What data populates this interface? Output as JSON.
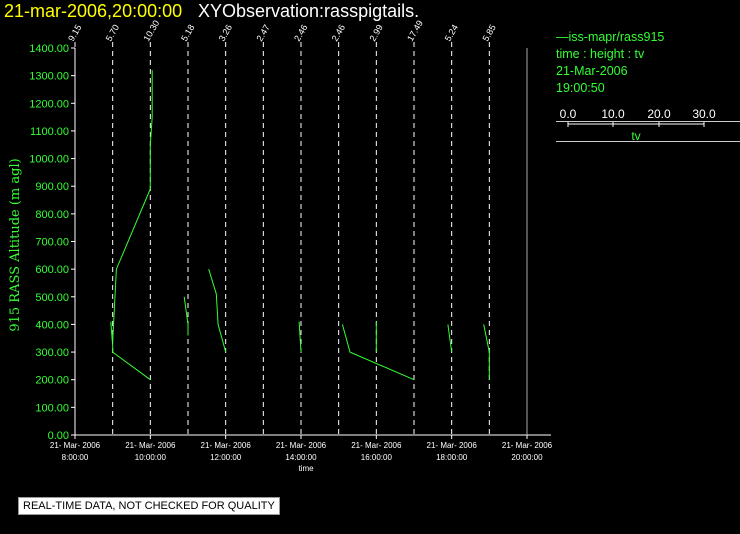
{
  "header": {
    "date_time": "21-mar-2006,20:00:00",
    "observation": "XYObservation:rasspigtails."
  },
  "legend": {
    "series_label": "iss-mapr/rass915",
    "axes_desc": "time : height : tv",
    "date": "21-Mar-2006",
    "time": "19:00:50",
    "scale_ticks": [
      "0.0",
      "10.0",
      "20.0",
      "30.0"
    ],
    "scale_label": "tv"
  },
  "footer": {
    "quality_note": "REAL-TIME DATA, NOT CHECKED FOR QUALITY"
  },
  "colors": {
    "trace": "#33ff33",
    "axis": "#ffffff",
    "title_date": "#ffff00"
  },
  "chart_data": {
    "type": "line",
    "ylabel": "915 RASS Altitude (m agl)",
    "xlabel": "time",
    "ylim": [
      0,
      1400
    ],
    "xlim": [
      8,
      21
    ],
    "y_ticks": [
      "0.00",
      "100.00",
      "200.00",
      "300.00",
      "400.00",
      "500.00",
      "600.00",
      "700.00",
      "800.00",
      "900.00",
      "1000.00",
      "1100.00",
      "1200.00",
      "1300.00",
      "1400.00"
    ],
    "x_ticks": [
      {
        "x": 8,
        "date": "21- Mar- 2006",
        "time": "8:00:00"
      },
      {
        "x": 10,
        "date": "21- Mar- 2006",
        "time": "10:00:00"
      },
      {
        "x": 12,
        "date": "21- Mar- 2006",
        "time": "12:00:00"
      },
      {
        "x": 14,
        "date": "21- Mar- 2006",
        "time": "14:00:00"
      },
      {
        "x": 16,
        "date": "21- Mar- 2006",
        "time": "16:00:00"
      },
      {
        "x": 18,
        "date": "21- Mar- 2006",
        "time": "18:00:00"
      },
      {
        "x": 20,
        "date": "21- Mar- 2006",
        "time": "20:00:00"
      }
    ],
    "grid": false,
    "profiles": [
      {
        "time": 8.0,
        "scale": "9.15",
        "points": []
      },
      {
        "time": 9.0,
        "scale": "5.70",
        "points": [
          [
            8.95,
            410
          ],
          [
            9.0,
            320
          ],
          [
            9.0,
            300
          ],
          [
            10.0,
            200
          ]
        ]
      },
      {
        "time": 9.0,
        "scale": "",
        "points": [
          [
            9.0,
            340
          ],
          [
            9.1,
            600
          ],
          [
            10.0,
            890
          ],
          [
            10.0,
            1050
          ],
          [
            10.05,
            1150
          ],
          [
            10.05,
            1320
          ]
        ]
      },
      {
        "time": 10.0,
        "scale": "10.30",
        "points": []
      },
      {
        "time": 11.0,
        "scale": "5.18",
        "points": [
          [
            10.9,
            500
          ],
          [
            11.0,
            400
          ],
          [
            11.0,
            360
          ]
        ]
      },
      {
        "time": 12.0,
        "scale": "3.26",
        "points": [
          [
            11.55,
            600
          ],
          [
            11.75,
            510
          ],
          [
            11.8,
            400
          ],
          [
            12.0,
            300
          ]
        ]
      },
      {
        "time": 13.0,
        "scale": "2.47",
        "points": []
      },
      {
        "time": 14.0,
        "scale": "2.46",
        "points": [
          [
            13.95,
            410
          ],
          [
            14.0,
            300
          ]
        ]
      },
      {
        "time": 15.0,
        "scale": "2.46",
        "points": [
          [
            15.1,
            400
          ],
          [
            15.3,
            300
          ],
          [
            17.0,
            200
          ]
        ]
      },
      {
        "time": 16.0,
        "scale": "2.99",
        "points": [
          [
            16.0,
            410
          ],
          [
            16.0,
            300
          ]
        ]
      },
      {
        "time": 17.0,
        "scale": "17.49",
        "points": []
      },
      {
        "time": 18.0,
        "scale": "5.24",
        "points": [
          [
            17.9,
            400
          ],
          [
            18.0,
            300
          ]
        ]
      },
      {
        "time": 19.0,
        "scale": "5.85",
        "points": [
          [
            18.85,
            400
          ],
          [
            19.0,
            300
          ],
          [
            19.0,
            200
          ]
        ]
      }
    ]
  }
}
